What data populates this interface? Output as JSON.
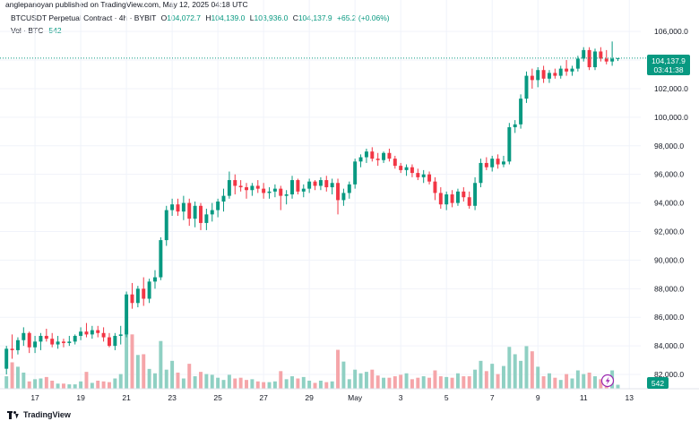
{
  "publish_line": "anglepanoyan published on TradingView.com, May 12, 2025 04:18 UTC",
  "legend": {
    "symbol": "BTCUSDT Perpetual Contract · 4h · BYBIT",
    "open_label": "O",
    "open": "104,072.7",
    "high_label": "H",
    "high": "104,139.0",
    "low_label": "L",
    "low": "103,936.0",
    "close_label": "C",
    "close": "104,137.9",
    "change": "+65.2 (+0.06%)"
  },
  "volume_legend": {
    "label": "Vol · BTC",
    "value": "542"
  },
  "price_tag": {
    "price": "104,137.9",
    "countdown": "03:41:38"
  },
  "volume_tag": "542",
  "footer": {
    "brand": "TradingView"
  },
  "colors": {
    "up": "#089981",
    "down": "#f23645",
    "up_volume": "#8fd0c3",
    "down_volume": "#f5a5a9",
    "price_line": "#089981"
  },
  "chart_data": {
    "type": "candlestick",
    "title": "BTCUSDT Perpetual Contract · 4h · BYBIT",
    "y_tick_labels": [
      "82,000.0",
      "84,000.0",
      "86,000.0",
      "88,000.0",
      "90,000.0",
      "92,000.0",
      "94,000.0",
      "96,000.0",
      "98,000.0",
      "100,000.0",
      "102,000.0",
      "104,000.0",
      "106,000.0"
    ],
    "y_ticks": [
      82000,
      84000,
      86000,
      88000,
      90000,
      92000,
      94000,
      96000,
      98000,
      100000,
      102000,
      104000,
      106000
    ],
    "ylim": [
      81000,
      107200
    ],
    "x_tick_labels": [
      "17",
      "19",
      "21",
      "23",
      "25",
      "27",
      "29",
      "May",
      "3",
      "5",
      "7",
      "9",
      "11",
      "13"
    ],
    "x_tick_positions": [
      5,
      13,
      21,
      29,
      37,
      45,
      53,
      61,
      69,
      77,
      85,
      93,
      101,
      109
    ],
    "xlim": [
      -0.5,
      111
    ],
    "grid": true,
    "current_price": 104137.9,
    "candles": [
      [
        82400,
        84000,
        82000,
        83800
      ],
      [
        83800,
        84800,
        83100,
        83700
      ],
      [
        83700,
        84600,
        83400,
        84400
      ],
      [
        84400,
        85300,
        84000,
        84900
      ],
      [
        84900,
        85000,
        83500,
        83900
      ],
      [
        83900,
        84700,
        83500,
        84300
      ],
      [
        84300,
        84900,
        83700,
        84700
      ],
      [
        84700,
        85200,
        84300,
        84500
      ],
      [
        84500,
        84900,
        83900,
        84100
      ],
      [
        84100,
        84700,
        83800,
        84300
      ],
      [
        84300,
        84500,
        83900,
        84200
      ],
      [
        84200,
        84700,
        84000,
        84300
      ],
      [
        84300,
        84800,
        84100,
        84700
      ],
      [
        84700,
        85300,
        84400,
        85000
      ],
      [
        85000,
        85600,
        84600,
        84800
      ],
      [
        84800,
        85400,
        84500,
        85100
      ],
      [
        85100,
        85400,
        84600,
        84900
      ],
      [
        84900,
        85300,
        84300,
        84600
      ],
      [
        84600,
        84900,
        83900,
        84000
      ],
      [
        84000,
        84900,
        83700,
        84700
      ],
      [
        84700,
        85400,
        84100,
        84800
      ],
      [
        84800,
        87800,
        84600,
        87600
      ],
      [
        87600,
        88400,
        86600,
        87000
      ],
      [
        87000,
        88200,
        86700,
        88000
      ],
      [
        88000,
        88800,
        86800,
        87300
      ],
      [
        87300,
        88700,
        87000,
        88500
      ],
      [
        88500,
        89300,
        88000,
        88800
      ],
      [
        88800,
        91600,
        88600,
        91400
      ],
      [
        91400,
        93800,
        91000,
        93500
      ],
      [
        93500,
        94300,
        93100,
        93900
      ],
      [
        93900,
        94300,
        93100,
        93400
      ],
      [
        93400,
        94500,
        92800,
        94000
      ],
      [
        94000,
        94300,
        92400,
        92900
      ],
      [
        92900,
        94100,
        92300,
        93800
      ],
      [
        93800,
        94000,
        92100,
        92600
      ],
      [
        92600,
        93600,
        92100,
        93200
      ],
      [
        93200,
        94000,
        92700,
        93500
      ],
      [
        93500,
        94300,
        93000,
        94100
      ],
      [
        94100,
        95000,
        93400,
        94500
      ],
      [
        94500,
        96200,
        94300,
        95600
      ],
      [
        95600,
        96000,
        94600,
        95200
      ],
      [
        95200,
        95600,
        94800,
        95100
      ],
      [
        95100,
        95400,
        94300,
        94900
      ],
      [
        94900,
        95400,
        94500,
        95200
      ],
      [
        95200,
        95600,
        94700,
        95000
      ],
      [
        95000,
        95400,
        94300,
        94700
      ],
      [
        94700,
        95100,
        94300,
        94800
      ],
      [
        94800,
        95300,
        94400,
        95000
      ],
      [
        95000,
        95200,
        93500,
        94500
      ],
      [
        94500,
        94900,
        93900,
        94600
      ],
      [
        94600,
        95900,
        94300,
        95600
      ],
      [
        95600,
        95700,
        94600,
        94800
      ],
      [
        94800,
        95300,
        94400,
        95000
      ],
      [
        95000,
        95700,
        94700,
        95500
      ],
      [
        95500,
        95600,
        94900,
        95200
      ],
      [
        95200,
        95800,
        94900,
        95600
      ],
      [
        95600,
        95900,
        94800,
        95100
      ],
      [
        95100,
        95700,
        94600,
        95400
      ],
      [
        95400,
        95700,
        93200,
        94200
      ],
      [
        94200,
        95000,
        93800,
        94700
      ],
      [
        94700,
        95500,
        94300,
        95300
      ],
      [
        95300,
        97100,
        95000,
        96900
      ],
      [
        96900,
        97400,
        96500,
        97200
      ],
      [
        97200,
        97800,
        96800,
        97600
      ],
      [
        97600,
        97900,
        96900,
        97100
      ],
      [
        97100,
        97500,
        96600,
        97000
      ],
      [
        97000,
        97600,
        96800,
        97500
      ],
      [
        97500,
        97800,
        96900,
        97100
      ],
      [
        97100,
        97300,
        96400,
        96600
      ],
      [
        96600,
        96800,
        96100,
        96300
      ],
      [
        96300,
        96700,
        95900,
        96500
      ],
      [
        96500,
        96700,
        95800,
        96100
      ],
      [
        96100,
        96400,
        95600,
        95800
      ],
      [
        95800,
        96300,
        95400,
        96000
      ],
      [
        96000,
        96200,
        95300,
        95500
      ],
      [
        95500,
        95800,
        94200,
        94700
      ],
      [
        94700,
        95100,
        93600,
        93900
      ],
      [
        93900,
        94800,
        93500,
        94600
      ],
      [
        94600,
        94900,
        93700,
        94000
      ],
      [
        94000,
        95000,
        93800,
        94800
      ],
      [
        94800,
        95100,
        94100,
        94400
      ],
      [
        94400,
        94800,
        93600,
        93800
      ],
      [
        93800,
        95800,
        93500,
        95400
      ],
      [
        95400,
        97100,
        95100,
        96800
      ],
      [
        96800,
        97200,
        96300,
        96500
      ],
      [
        96500,
        97300,
        96200,
        97100
      ],
      [
        97100,
        97400,
        96400,
        96700
      ],
      [
        96700,
        97300,
        96500,
        96900
      ],
      [
        96900,
        99600,
        96700,
        99300
      ],
      [
        99300,
        99800,
        98900,
        99500
      ],
      [
        99500,
        101600,
        99200,
        101300
      ],
      [
        101300,
        103200,
        101000,
        102900
      ],
      [
        102900,
        103400,
        102000,
        102600
      ],
      [
        102600,
        103500,
        102100,
        103300
      ],
      [
        103300,
        103600,
        102400,
        102700
      ],
      [
        102700,
        103300,
        102400,
        103100
      ],
      [
        103100,
        103400,
        102700,
        102900
      ],
      [
        102900,
        103600,
        102700,
        103400
      ],
      [
        103400,
        104000,
        102900,
        103200
      ],
      [
        103200,
        103600,
        102900,
        103400
      ],
      [
        103400,
        104300,
        103200,
        104100
      ],
      [
        104100,
        104900,
        103900,
        104700
      ],
      [
        104700,
        104900,
        103300,
        103500
      ],
      [
        103500,
        104800,
        103300,
        104600
      ],
      [
        104600,
        104900,
        103900,
        104100
      ],
      [
        104100,
        104700,
        103700,
        103900
      ],
      [
        103900,
        105300,
        103600,
        104100
      ],
      [
        104072.7,
        104139.0,
        103936.0,
        104137.9
      ]
    ],
    "volume_scale": [
      0,
      10000
    ],
    "volumes": [
      1700,
      3600,
      3000,
      2200,
      1000,
      1300,
      1400,
      1600,
      1100,
      700,
      700,
      600,
      600,
      1000,
      2300,
      800,
      1100,
      1000,
      900,
      1400,
      2000,
      8200,
      7400,
      4600,
      4700,
      2700,
      2100,
      6500,
      2600,
      3800,
      2200,
      1400,
      3400,
      1700,
      2300,
      2000,
      1900,
      1500,
      1200,
      1900,
      1400,
      1500,
      1200,
      1300,
      1000,
      900,
      900,
      1000,
      2400,
      1300,
      1700,
      1400,
      1600,
      1100,
      800,
      1100,
      900,
      1000,
      5300,
      3700,
      1300,
      2600,
      2100,
      2300,
      2600,
      1800,
      1500,
      1500,
      1700,
      1900,
      2100,
      1300,
      1500,
      1700,
      1500,
      2500,
      1700,
      1600,
      1500,
      2100,
      1700,
      1700,
      2600,
      3800,
      2400,
      3400,
      2000,
      3100,
      5700,
      4700,
      3800,
      5800,
      5100,
      3000,
      1700,
      2100,
      1500,
      1200,
      2000,
      1400,
      2500,
      2000,
      2200,
      1700,
      1300,
      1600,
      2500,
      542
    ]
  }
}
